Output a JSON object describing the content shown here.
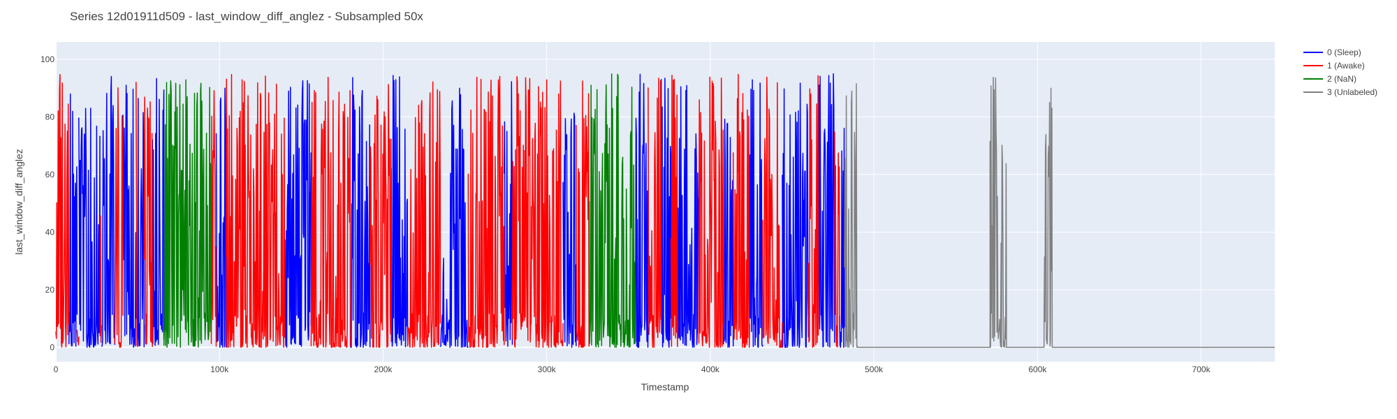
{
  "chart_data": {
    "type": "line",
    "title": "Series 12d01911d509 - last_window_diff_anglez - Subsampled 50x",
    "xlabel": "Timestamp",
    "ylabel": "last_window_diff_anglez",
    "xlim": [
      0,
      745000
    ],
    "ylim": [
      -5,
      106
    ],
    "x_ticks": [
      0,
      100000,
      200000,
      300000,
      400000,
      500000,
      600000,
      700000
    ],
    "x_tick_labels": [
      "0",
      "100k",
      "200k",
      "300k",
      "400k",
      "500k",
      "600k",
      "700k"
    ],
    "y_ticks": [
      0,
      20,
      40,
      60,
      80,
      100
    ],
    "y_tick_labels": [
      "0",
      "20",
      "40",
      "60",
      "80",
      "100"
    ],
    "grid": true,
    "legend_position": "top-right",
    "background_color": "#E5ECF6",
    "series": [
      {
        "name": "0 (Sleep)",
        "color": "#0000ff",
        "segments": [
          [
            8000,
            13000
          ],
          [
            14000,
            27000
          ],
          [
            28000,
            36000
          ],
          [
            41000,
            49000
          ],
          [
            50000,
            54000
          ],
          [
            59000,
            66000
          ],
          [
            98000,
            104000
          ],
          [
            140000,
            156000
          ],
          [
            180000,
            192000
          ],
          [
            205000,
            215000
          ],
          [
            235000,
            252000
          ],
          [
            274000,
            279000
          ],
          [
            310000,
            318000
          ],
          [
            354000,
            362000
          ],
          [
            370000,
            376000
          ],
          [
            380000,
            393000
          ],
          [
            408000,
            414000
          ],
          [
            424000,
            432000
          ],
          [
            444000,
            460000
          ],
          [
            466000,
            476000
          ],
          [
            479000,
            482000
          ]
        ]
      },
      {
        "name": "1 (Awake)",
        "color": "#ff0000",
        "segments": [
          [
            0,
            8000
          ],
          [
            13000,
            14000
          ],
          [
            27000,
            28000
          ],
          [
            36000,
            41000
          ],
          [
            49000,
            50000
          ],
          [
            54000,
            59000
          ],
          [
            95000,
            98000
          ],
          [
            104000,
            140000
          ],
          [
            156000,
            180000
          ],
          [
            192000,
            205000
          ],
          [
            215000,
            235000
          ],
          [
            252000,
            274000
          ],
          [
            279000,
            310000
          ],
          [
            318000,
            326000
          ],
          [
            362000,
            370000
          ],
          [
            376000,
            380000
          ],
          [
            393000,
            408000
          ],
          [
            414000,
            424000
          ],
          [
            432000,
            444000
          ],
          [
            460000,
            466000
          ],
          [
            476000,
            479000
          ]
        ]
      },
      {
        "name": "2 (NaN)",
        "color": "#008000",
        "segments": [
          [
            66000,
            95000
          ],
          [
            326000,
            354000
          ]
        ]
      },
      {
        "name": "3 (Unlabeled)",
        "color": "#808080",
        "segments": [
          [
            482000,
            745000
          ]
        ],
        "active_bursts": [
          [
            482000,
            490000
          ],
          [
            571000,
            581000
          ],
          [
            604000,
            609000
          ]
        ]
      }
    ]
  }
}
